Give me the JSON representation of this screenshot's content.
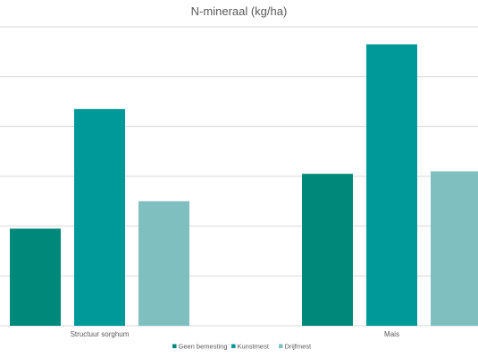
{
  "chart_data": {
    "type": "bar",
    "title": "N-mineraal (kg/ha)",
    "xlabel": "",
    "ylabel": "",
    "categories": [
      "Structuur sorghum",
      "Mais"
    ],
    "series": [
      {
        "name": "Geen bemesting",
        "values": [
          39,
          61
        ],
        "color": "#00897B"
      },
      {
        "name": "Kunstmest",
        "values": [
          87,
          113
        ],
        "color": "#009999"
      },
      {
        "name": "Drijfmest",
        "values": [
          50,
          62
        ],
        "color": "#80BFBF"
      }
    ],
    "ylim": [
      0,
      120
    ],
    "grid": true,
    "legend": "bottom"
  }
}
